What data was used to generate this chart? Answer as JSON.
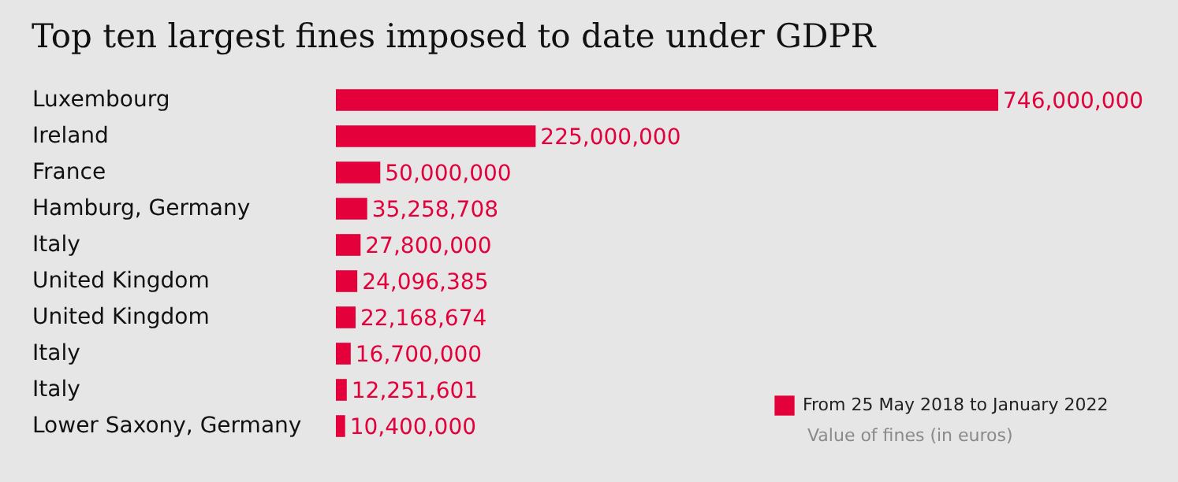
{
  "chart_data": {
    "type": "bar",
    "orientation": "horizontal",
    "title": "Top ten largest fines imposed to date under GDPR",
    "categories": [
      "Luxembourg",
      "Ireland",
      "France",
      "Hamburg, Germany",
      "Italy",
      "United Kingdom",
      "United Kingdom",
      "Italy",
      "Italy",
      "Lower Saxony, Germany"
    ],
    "series": [
      {
        "name": "From 25 May 2018 to January 2022",
        "color": "#e4003b",
        "values": [
          746000000,
          225000000,
          50000000,
          35258708,
          27800000,
          24096385,
          22168674,
          16700000,
          12251601,
          10400000
        ],
        "value_labels": [
          "746,000,000",
          "225,000,000",
          "50,000,000",
          "35,258,708",
          "27,800,000",
          "24,096,385",
          "22,168,674",
          "16,700,000",
          "12,251,601",
          "10,400,000"
        ]
      }
    ],
    "data_labels": true,
    "legend": "bottom right",
    "tick_labels": "y",
    "annotations": [
      "Value of fines (in euros)"
    ]
  }
}
